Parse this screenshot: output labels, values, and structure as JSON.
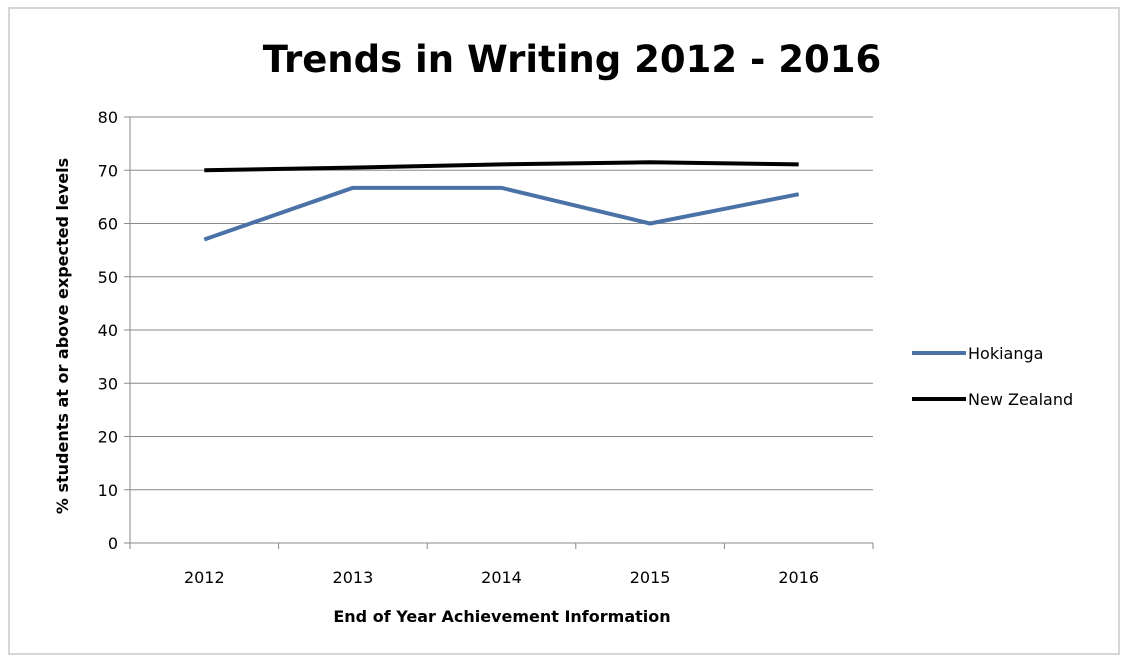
{
  "chart_data": {
    "type": "line",
    "title": "Trends in Writing 2012 - 2016",
    "xlabel": "End of Year Achievement Information",
    "ylabel": "% students at or above expected levels",
    "categories": [
      "2012",
      "2013",
      "2014",
      "2015",
      "2016"
    ],
    "ylim": [
      0,
      80
    ],
    "yticks": [
      0,
      10,
      20,
      30,
      40,
      50,
      60,
      70,
      80
    ],
    "grid": true,
    "legend_position": "right",
    "series": [
      {
        "name": "Hokianga",
        "values": [
          57,
          66.7,
          66.7,
          60,
          65.5
        ],
        "color": "#4a72a6"
      },
      {
        "name": "New Zealand",
        "values": [
          70,
          70.5,
          71.1,
          71.5,
          71.1
        ],
        "color": "#000000"
      }
    ]
  }
}
